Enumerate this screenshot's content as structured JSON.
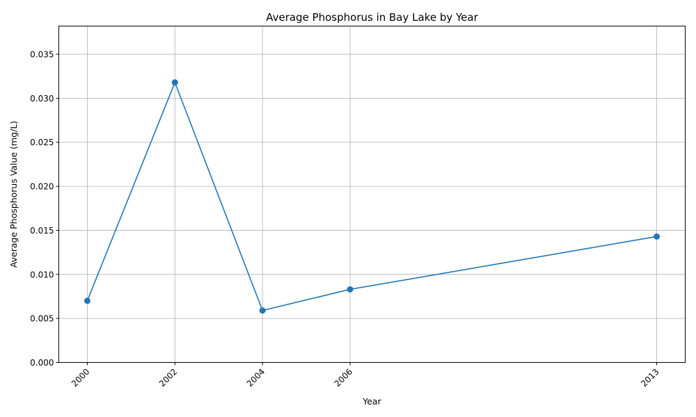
{
  "chart_data": {
    "type": "line",
    "title": "Average Phosphorus in Bay Lake by Year",
    "xlabel": "Year",
    "ylabel": "Average Phosphorus Value (mg/L)",
    "x": [
      2000,
      2002,
      2004,
      2006,
      2013
    ],
    "x_tick_labels": [
      "2000",
      "2002",
      "2004",
      "2006",
      "2013"
    ],
    "xlim": [
      1999.35,
      2013.65
    ],
    "ylim": [
      0,
      0.0382
    ],
    "y_ticks": [
      0,
      0.005,
      0.01,
      0.015,
      0.02,
      0.025,
      0.03,
      0.035
    ],
    "y_tick_labels": [
      "0.000",
      "0.005",
      "0.010",
      "0.015",
      "0.020",
      "0.025",
      "0.030",
      "0.035"
    ],
    "series": [
      {
        "values": [
          0.007,
          0.0318,
          0.0059,
          0.0083,
          0.0143
        ],
        "color": "#1f77b4",
        "marker": "circle"
      }
    ],
    "grid": true,
    "x_tick_rotation": "45deg, right-aligned",
    "legend": "none"
  }
}
